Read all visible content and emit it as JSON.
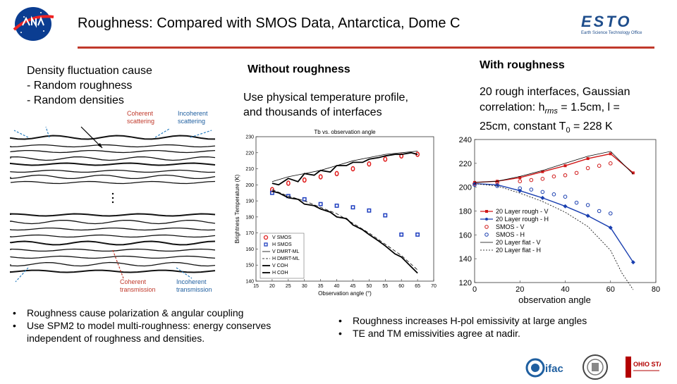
{
  "slide": {
    "title": "Roughness: Compared with SMOS Data, Antarctica, Dome C",
    "logo_esto_text": "ESTO",
    "logo_esto_sub": "Earth Science Technology Office",
    "logo_ifac_text": "ifac",
    "logo_osu_text": "OHIO STATE"
  },
  "left": {
    "heading": "Density fluctuation cause",
    "items": [
      "- Random roughness",
      "- Random densities"
    ],
    "diagram_labels": {
      "coherent_scattering": [
        "Coherent",
        "scattering"
      ],
      "incoherent_scattering": [
        "Incoherent",
        "scattering"
      ],
      "coherent_transmission": [
        "Coherent",
        "transmission"
      ],
      "incoherent_transmission": [
        "Incoherent",
        "transmission"
      ]
    }
  },
  "middle": {
    "heading": "Without roughness",
    "description": [
      "Use physical temperature profile,",
      "and thousands of interfaces"
    ]
  },
  "right": {
    "heading": "With  roughness",
    "description": [
      "20 rough interfaces, Gaussian",
      "correlation: h",
      "rms",
      " = 1.5cm, l =",
      "25cm, constant T",
      "0",
      " = 228 K"
    ]
  },
  "bottom_left_bullets": [
    "Roughness cause polarization & angular coupling",
    "Use SPM2 to model multi-roughness: energy conserves independent of roughness and densities."
  ],
  "bottom_right_bullets": [
    "Roughness increases H-pol emissivity at large angles",
    "TE and TM emissivities agree at nadir."
  ],
  "chart_data": [
    {
      "type": "line",
      "title": "Tb vs. observation angle",
      "xlabel": "Observation angle (°)",
      "ylabel": "Brightness Temperature (K)",
      "xlim": [
        15,
        70
      ],
      "ylim": [
        140,
        230
      ],
      "xticks": [
        15,
        20,
        25,
        30,
        35,
        40,
        45,
        50,
        55,
        60,
        65,
        70
      ],
      "yticks": [
        140,
        150,
        160,
        170,
        180,
        190,
        200,
        210,
        220,
        230
      ],
      "legend": [
        "V SMOS",
        "H SMOS",
        "V DMRT-ML",
        "H DMRT-ML",
        "V COH",
        "H COH"
      ],
      "legend_position": "lower-left",
      "series": [
        {
          "name": "V SMOS",
          "style": "marker-red-circle",
          "x": [
            20,
            25,
            30,
            35,
            40,
            45,
            50,
            55,
            60,
            65
          ],
          "y": [
            197,
            201,
            203,
            205,
            207,
            210,
            213,
            216,
            218,
            219
          ]
        },
        {
          "name": "H SMOS",
          "style": "marker-blue-square",
          "x": [
            20,
            25,
            30,
            35,
            40,
            45,
            50,
            55,
            60,
            65
          ],
          "y": [
            195,
            193,
            191,
            188,
            187,
            186,
            184,
            181,
            169,
            169
          ]
        },
        {
          "name": "V DMRT-ML",
          "style": "solid-thin",
          "x": [
            20,
            25,
            30,
            35,
            40,
            45,
            50,
            55,
            60,
            65
          ],
          "y": [
            202,
            205,
            207,
            209,
            212,
            215,
            217,
            219,
            220,
            221
          ]
        },
        {
          "name": "H DMRT-ML",
          "style": "dashed",
          "x": [
            20,
            25,
            30,
            35,
            40,
            45,
            50,
            55,
            60,
            65
          ],
          "y": [
            197,
            193,
            190,
            186,
            182,
            176,
            170,
            163,
            156,
            147
          ]
        },
        {
          "name": "V COH",
          "style": "solid-thick",
          "x": [
            20,
            22,
            25,
            28,
            30,
            33,
            35,
            38,
            40,
            43,
            45,
            48,
            50,
            53,
            55,
            58,
            60,
            63,
            65
          ],
          "y": [
            201,
            200,
            204,
            202,
            207,
            206,
            209,
            208,
            212,
            212,
            214,
            214,
            216,
            217,
            218,
            219,
            219,
            220,
            219
          ]
        },
        {
          "name": "H COH",
          "style": "solid-thick-wiggly",
          "x": [
            20,
            22,
            25,
            28,
            30,
            33,
            35,
            38,
            40,
            43,
            45,
            48,
            50,
            53,
            55,
            58,
            60,
            63,
            65
          ],
          "y": [
            196,
            195,
            192,
            191,
            188,
            187,
            185,
            183,
            180,
            179,
            175,
            172,
            169,
            165,
            162,
            157,
            155,
            149,
            145
          ]
        }
      ]
    },
    {
      "type": "line",
      "title": "",
      "xlabel": "observation angle",
      "ylabel": "",
      "xlim": [
        0,
        80
      ],
      "ylim": [
        120,
        240
      ],
      "xticks": [
        0,
        20,
        40,
        60,
        80
      ],
      "yticks": [
        120,
        140,
        160,
        180,
        200,
        220,
        240
      ],
      "legend": [
        "20 Layer rough - V",
        "20 Layer rough - H",
        "SMOS - V",
        "SMOS - H",
        "20 Layer flat - V",
        "20 Layer flat - H"
      ],
      "legend_position": "lower-left",
      "series": [
        {
          "name": "20 Layer rough - V",
          "style": "red-line-square",
          "x": [
            0,
            10,
            20,
            30,
            40,
            50,
            60,
            70
          ],
          "y": [
            204,
            205,
            208,
            213,
            218,
            224,
            228,
            212
          ]
        },
        {
          "name": "20 Layer rough - H",
          "style": "blue-line-diamond",
          "x": [
            0,
            10,
            20,
            30,
            40,
            50,
            60,
            70
          ],
          "y": [
            203,
            202,
            197,
            191,
            184,
            176,
            166,
            137
          ]
        },
        {
          "name": "SMOS - V",
          "style": "red-circle",
          "x": [
            0,
            10,
            20,
            25,
            30,
            35,
            40,
            45,
            50,
            55,
            60
          ],
          "y": [
            203,
            204,
            205,
            206,
            207,
            209,
            210,
            212,
            216,
            218,
            220
          ]
        },
        {
          "name": "SMOS - H",
          "style": "blue-circle",
          "x": [
            0,
            10,
            20,
            25,
            30,
            35,
            40,
            45,
            50,
            55,
            60
          ],
          "y": [
            202,
            201,
            199,
            198,
            196,
            194,
            192,
            187,
            185,
            180,
            178
          ]
        },
        {
          "name": "20 Layer flat - V",
          "style": "black-line",
          "x": [
            0,
            10,
            20,
            30,
            40,
            50,
            60,
            70
          ],
          "y": [
            204,
            205,
            209,
            214,
            220,
            226,
            230,
            211
          ]
        },
        {
          "name": "20 Layer flat - H",
          "style": "black-dotted",
          "x": [
            0,
            10,
            20,
            30,
            40,
            50,
            60,
            65,
            70
          ],
          "y": [
            203,
            201,
            195,
            188,
            179,
            167,
            147,
            128,
            114
          ]
        }
      ]
    }
  ]
}
